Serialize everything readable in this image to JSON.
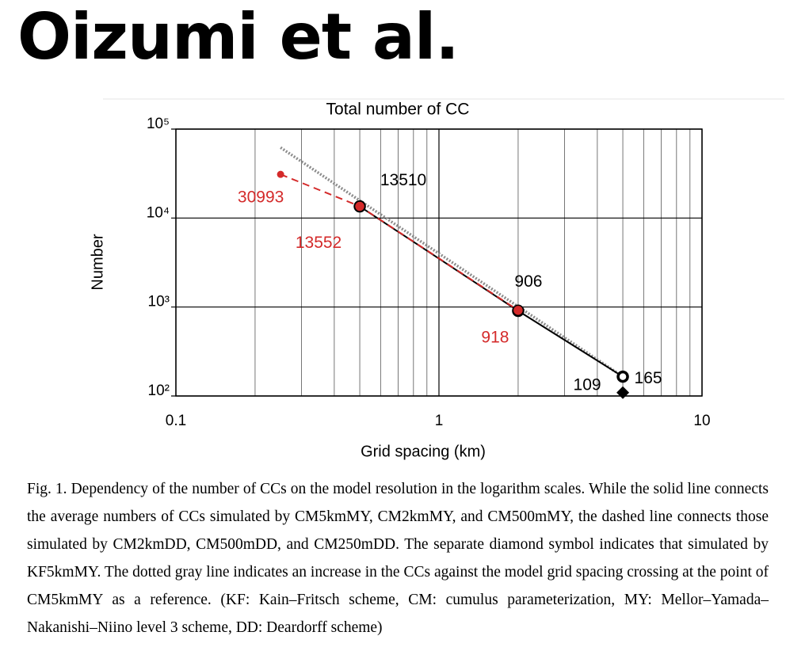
{
  "header": {
    "title": "Oizumi et al."
  },
  "chart_data": {
    "type": "line",
    "title": "Total number of CC",
    "xlabel": "Grid spacing (km)",
    "ylabel": "Number",
    "xlog": true,
    "ylog": true,
    "grid": true,
    "xlim": [
      0.1,
      10
    ],
    "xticks": [
      0.1,
      1,
      10
    ],
    "ylim": [
      100,
      100000
    ],
    "yticks": [
      {
        "value": 100,
        "label": "10²"
      },
      {
        "value": 1000,
        "label": "10³"
      },
      {
        "value": 10000,
        "label": "10⁴"
      },
      {
        "value": 100000,
        "label": "10⁵"
      }
    ],
    "series": [
      {
        "color": "#000000",
        "line_style": "solid",
        "marker": "ring",
        "x": [
          0.5,
          2,
          5
        ],
        "values": [
          13510,
          906,
          165
        ]
      },
      {
        "color": "#d42a2a",
        "line_style": "dashed",
        "marker": "dot",
        "x": [
          0.25,
          0.5,
          2
        ],
        "values": [
          30993,
          13552,
          918
        ]
      },
      {
        "color": "#000000",
        "line_style": "none",
        "marker": "diamond",
        "x": [
          5
        ],
        "values": [
          109
        ]
      },
      {
        "color": "#8c8c8c",
        "line_style": "dotted",
        "marker": "none",
        "x": [
          0.25,
          5
        ],
        "values": [
          62000,
          165
        ]
      }
    ]
  },
  "caption": "Fig. 1. Dependency of the number of CCs on the model resolution in the logarithm scales. While the solid line connects the average numbers of CCs simulated by CM5kmMY, CM2kmMY, and CM500mMY, the dashed line connects those simulated by CM2kmDD, CM500mDD, and CM250mDD. The separate diamond symbol indicates that simulated by KF5kmMY. The dotted gray line indicates an increase in the CCs against the model grid spacing crossing at the point of CM5kmMY as a reference. (KF: Kain–Fritsch scheme, CM: cumulus parameterization, MY: Mellor–Yamada–Nakanishi–Niino level 3 scheme, DD: Deardorff scheme)"
}
